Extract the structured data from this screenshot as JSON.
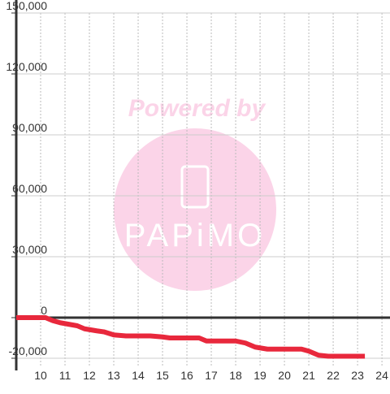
{
  "chart_data": {
    "type": "line",
    "watermark": {
      "line1": "Powered by",
      "line2": "PAPiMO"
    },
    "series": [
      {
        "color": "#e8283c",
        "x": [
          9.0,
          10.2,
          10.5,
          10.8,
          11.5,
          11.8,
          12.3,
          12.6,
          13.0,
          13.5,
          14.5,
          15.0,
          15.3,
          16.5,
          16.8,
          18.0,
          18.4,
          18.8,
          19.3,
          20.7,
          21.0,
          21.4,
          21.8,
          23.3
        ],
        "values": [
          0,
          0,
          -1500,
          -2500,
          -4000,
          -5500,
          -6500,
          -7000,
          -8500,
          -9000,
          -9000,
          -9500,
          -10000,
          -10000,
          -11500,
          -11500,
          -12500,
          -14500,
          -15500,
          -15500,
          -16500,
          -18500,
          -19000,
          -19000
        ]
      }
    ],
    "xlim": [
      9,
      24.33
    ],
    "xticks": [
      10,
      11,
      12,
      13,
      14,
      15,
      16,
      17,
      18,
      19,
      20,
      21,
      22,
      23,
      24
    ],
    "ylim": [
      -24000,
      150000
    ],
    "yticks": [
      {
        "value": 150000,
        "label": "150,000"
      },
      {
        "value": 120000,
        "label": "120,000"
      },
      {
        "value": 90000,
        "label": "90,000"
      },
      {
        "value": 60000,
        "label": "60,000"
      },
      {
        "value": 30000,
        "label": "30,000"
      },
      0,
      {
        "value": -20000,
        "label": "-20,000"
      }
    ],
    "grid": true
  }
}
